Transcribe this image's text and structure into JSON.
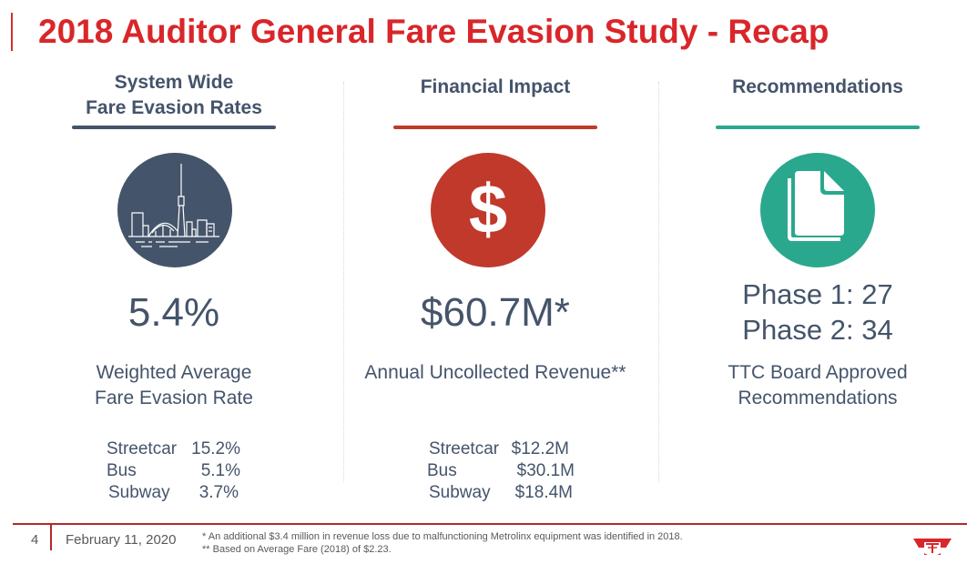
{
  "title": "2018 Auditor General Fare Evasion Study - Recap",
  "colors": {
    "title_red": "#d9262a",
    "slate": "#44546a",
    "red": "#c0392b",
    "teal": "#2aa88e",
    "footer_red": "#b5272b"
  },
  "columns": [
    {
      "heading_lines": [
        "System Wide",
        "Fare Evasion Rates"
      ],
      "icon": "toronto-skyline-icon",
      "value": "5.4%",
      "caption_lines": [
        "Weighted Average",
        "Fare Evasion Rate"
      ],
      "breakdown": [
        {
          "label": "Streetcar",
          "value": "15.2%"
        },
        {
          "label": "Bus",
          "value": "5.1%"
        },
        {
          "label": "Subway",
          "value": "3.7%"
        }
      ]
    },
    {
      "heading_lines": [
        "Financial Impact"
      ],
      "icon": "dollar-icon",
      "icon_glyph": "$",
      "value": "$60.7M*",
      "caption_lines": [
        "Annual Uncollected Revenue**"
      ],
      "breakdown": [
        {
          "label": "Streetcar",
          "value": "$12.2M"
        },
        {
          "label": "Bus",
          "value": "$30.1M"
        },
        {
          "label": "Subway",
          "value": "$18.4M"
        }
      ]
    },
    {
      "heading_lines": [
        "Recommendations"
      ],
      "icon": "document-icon",
      "value_lines": [
        "Phase 1: 27",
        "Phase 2: 34"
      ],
      "caption_lines": [
        "TTC Board Approved",
        "Recommendations"
      ]
    }
  ],
  "footer": {
    "page_number": "4",
    "date": "February 11, 2020",
    "footnotes": [
      "*  An additional $3.4 million in revenue loss due to malfunctioning Metrolinx equipment was identified in 2018.",
      "**  Based on Average Fare (2018) of $2.23."
    ],
    "logo": "ttc-logo-icon"
  }
}
